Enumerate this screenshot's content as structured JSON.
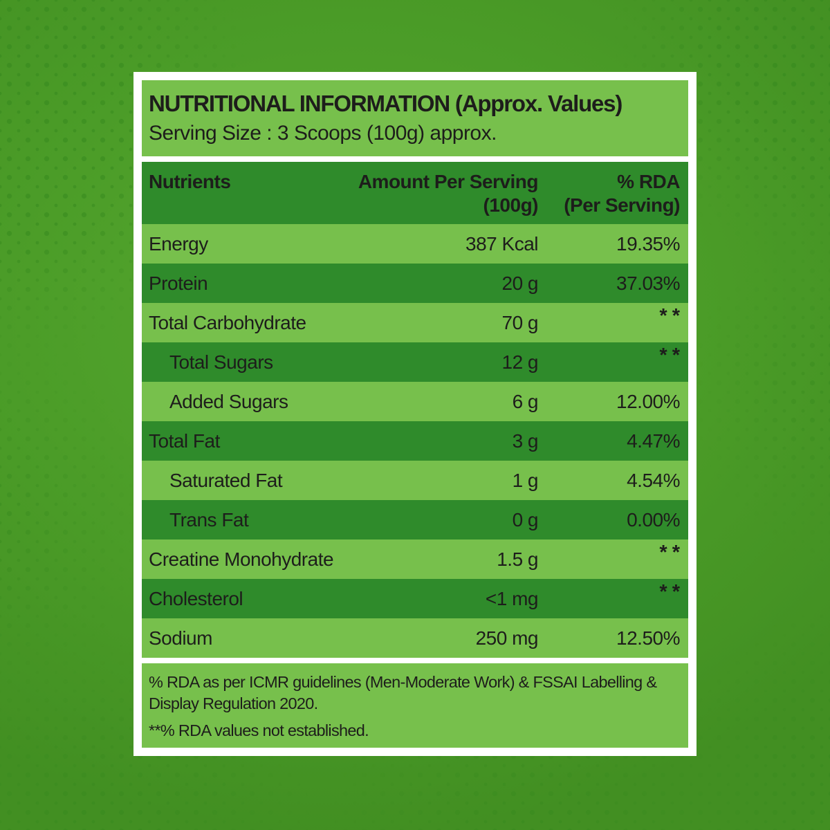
{
  "colors": {
    "background_green": "#4A9B27",
    "halftone_dot_green": "#35881E",
    "row_light_green": "#77C04C",
    "row_dark_green": "#2F8B2B",
    "frame_white": "#FFFFFF",
    "text_dark": "#1D1D1B"
  },
  "panel": {
    "title": "NUTRITIONAL INFORMATION (Approx. Values)",
    "serving_size": "Serving Size : 3 Scoops (100g) approx.",
    "table": {
      "header": {
        "nutrients": "Nutrients",
        "amount_line1": "Amount Per Serving",
        "amount_line2": "(100g)",
        "rda_line1": "% RDA",
        "rda_line2": "(Per Serving)"
      },
      "rows": [
        {
          "nutrient": "Energy",
          "amount": "387 Kcal",
          "rda": "19.35%",
          "indent": false
        },
        {
          "nutrient": "Protein",
          "amount": "20 g",
          "rda": "37.03%",
          "indent": false
        },
        {
          "nutrient": "Total Carbohydrate",
          "amount": "70 g",
          "rda": "**",
          "indent": false
        },
        {
          "nutrient": "Total Sugars",
          "amount": "12 g",
          "rda": "**",
          "indent": true
        },
        {
          "nutrient": "Added Sugars",
          "amount": "6 g",
          "rda": "12.00%",
          "indent": true
        },
        {
          "nutrient": "Total Fat",
          "amount": "3 g",
          "rda": "4.47%",
          "indent": false
        },
        {
          "nutrient": "Saturated Fat",
          "amount": "1 g",
          "rda": "4.54%",
          "indent": true
        },
        {
          "nutrient": "Trans Fat",
          "amount": "0 g",
          "rda": "0.00%",
          "indent": true
        },
        {
          "nutrient": "Creatine Monohydrate",
          "amount": "1.5 g",
          "rda": "**",
          "indent": false
        },
        {
          "nutrient": "Cholesterol",
          "amount": "<1 mg",
          "rda": "**",
          "indent": false
        },
        {
          "nutrient": "Sodium",
          "amount": "250 mg",
          "rda": "12.50%",
          "indent": false
        }
      ]
    },
    "footnotes": [
      "% RDA as per ICMR guidelines (Men-Moderate Work) & FSSAI Labelling & Display Regulation 2020.",
      "**% RDA values not established."
    ]
  }
}
